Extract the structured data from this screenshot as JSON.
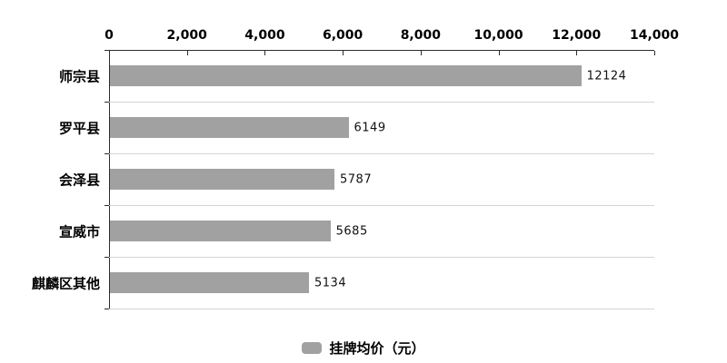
{
  "chart_data": {
    "type": "bar",
    "orientation": "horizontal",
    "title": "",
    "categories": [
      "师宗县",
      "罗平县",
      "会泽县",
      "宣威市",
      "麒麟区其他"
    ],
    "values": [
      12124,
      6149,
      5787,
      5685,
      5134
    ],
    "value_labels": [
      "12124",
      "6149",
      "5787",
      "5685",
      "5134"
    ],
    "series": [
      {
        "name": "挂牌均价（元）",
        "values": [
          12124,
          6149,
          5787,
          5685,
          5134
        ]
      }
    ],
    "xlim": [
      0,
      14000
    ],
    "x_ticks": [
      0,
      2000,
      4000,
      6000,
      8000,
      10000,
      12000,
      14000
    ],
    "x_tick_labels": [
      "0",
      "2,000",
      "4,000",
      "6,000",
      "8,000",
      "10,000",
      "12,000",
      "14,000"
    ],
    "axis_position": "top",
    "grid": "horizontal band separators on",
    "legend_position": "bottom-center",
    "colors": {
      "bar": "#a1a1a1",
      "axis": "#2b2b2b",
      "gridline": "#d4d4d4",
      "text": "#000000",
      "background": "#ffffff"
    }
  },
  "legend": {
    "label": "挂牌均价（元）"
  }
}
